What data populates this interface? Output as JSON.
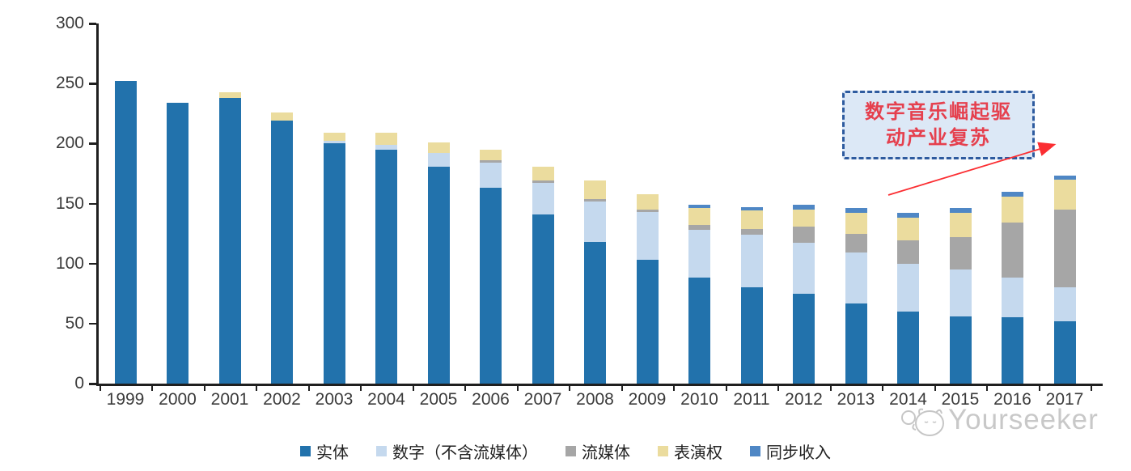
{
  "annotation": {
    "line1": "数字音乐崛起驱",
    "line2": "动产业复苏",
    "text_color": "#e5404e",
    "box_fill": "#dce8f6",
    "border_color": "#2e5b9f",
    "arrow_color": "#fb2e32"
  },
  "watermark": {
    "text": "Yourseeker",
    "color": "#c6c6c6"
  },
  "chart_data": {
    "type": "bar",
    "stacked": true,
    "title": "",
    "xlabel": "",
    "ylabel": "",
    "ylim": [
      0,
      300
    ],
    "yticks": [
      0,
      50,
      100,
      150,
      200,
      250,
      300
    ],
    "grid": false,
    "legend_position": "bottom",
    "categories": [
      "1999",
      "2000",
      "2001",
      "2002",
      "2003",
      "2004",
      "2005",
      "2006",
      "2007",
      "2008",
      "2009",
      "2010",
      "2011",
      "2012",
      "2013",
      "2014",
      "2015",
      "2016",
      "2017"
    ],
    "series": [
      {
        "name": "实体",
        "color": "#2272ac",
        "values": [
          252,
          234,
          238,
          219,
          200,
          195,
          181,
          163,
          141,
          118,
          103,
          88,
          80,
          75,
          67,
          60,
          56,
          55,
          52
        ]
      },
      {
        "name": "数字（不含流媒体）",
        "color": "#c5d9ee",
        "values": [
          0,
          0,
          0,
          0,
          2,
          4,
          11,
          21,
          26,
          34,
          40,
          40,
          44,
          42,
          42,
          40,
          39,
          33,
          28
        ]
      },
      {
        "name": "流媒体",
        "color": "#a6a6a6",
        "values": [
          0,
          0,
          0,
          0,
          0,
          0,
          0,
          2,
          2,
          2,
          2,
          4,
          5,
          14,
          16,
          19,
          27,
          46,
          65
        ]
      },
      {
        "name": "表演权",
        "color": "#ebdc9e",
        "values": [
          0,
          0,
          5,
          7,
          7,
          10,
          9,
          9,
          12,
          15,
          13,
          14,
          15,
          14,
          17,
          19,
          20,
          22,
          25
        ]
      },
      {
        "name": "同步收入",
        "color": "#4f87c5",
        "values": [
          0,
          0,
          0,
          0,
          0,
          0,
          0,
          0,
          0,
          0,
          0,
          3,
          3,
          4,
          4,
          4,
          4,
          4,
          3
        ]
      }
    ]
  }
}
